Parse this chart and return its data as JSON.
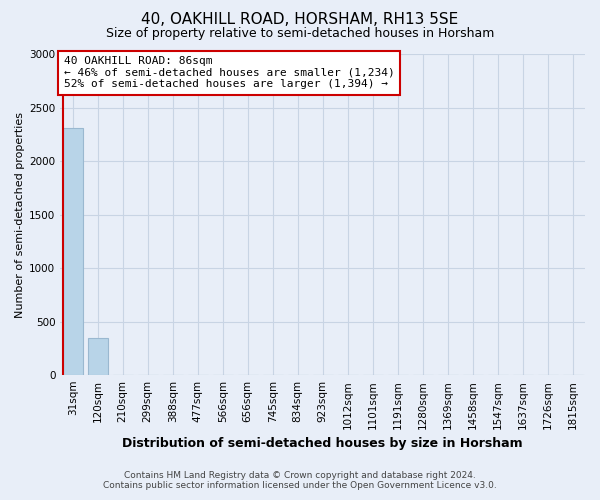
{
  "title": "40, OAKHILL ROAD, HORSHAM, RH13 5SE",
  "subtitle": "Size of property relative to semi-detached houses in Horsham",
  "xlabel": "Distribution of semi-detached houses by size in Horsham",
  "ylabel": "Number of semi-detached properties",
  "footer_line1": "Contains HM Land Registry data © Crown copyright and database right 2024.",
  "footer_line2": "Contains public sector information licensed under the Open Government Licence v3.0.",
  "categories": [
    "31sqm",
    "120sqm",
    "210sqm",
    "299sqm",
    "388sqm",
    "477sqm",
    "566sqm",
    "656sqm",
    "745sqm",
    "834sqm",
    "923sqm",
    "1012sqm",
    "1101sqm",
    "1191sqm",
    "1280sqm",
    "1369sqm",
    "1458sqm",
    "1547sqm",
    "1637sqm",
    "1726sqm",
    "1815sqm"
  ],
  "values": [
    2310,
    350,
    0,
    0,
    0,
    0,
    0,
    0,
    0,
    0,
    0,
    0,
    0,
    0,
    0,
    0,
    0,
    0,
    0,
    0,
    0
  ],
  "bar_color": "#b8d4e8",
  "bar_edge_color": "#9ab8d0",
  "property_line_color": "#cc0000",
  "annotation_box_color": "#cc0000",
  "annotation_text_line1": "40 OAKHILL ROAD: 86sqm",
  "annotation_text_line2": "← 46% of semi-detached houses are smaller (1,234)",
  "annotation_text_line3": "52% of semi-detached houses are larger (1,394) →",
  "grid_color": "#c8d4e4",
  "bg_color": "#e8eef8",
  "plot_bg_color": "#e8eef8",
  "ylim": [
    0,
    3000
  ],
  "yticks": [
    0,
    500,
    1000,
    1500,
    2000,
    2500,
    3000
  ],
  "property_line_x": -0.4,
  "title_fontsize": 11,
  "subtitle_fontsize": 9,
  "ylabel_fontsize": 8,
  "xlabel_fontsize": 9,
  "tick_fontsize": 7.5,
  "footer_fontsize": 6.5
}
